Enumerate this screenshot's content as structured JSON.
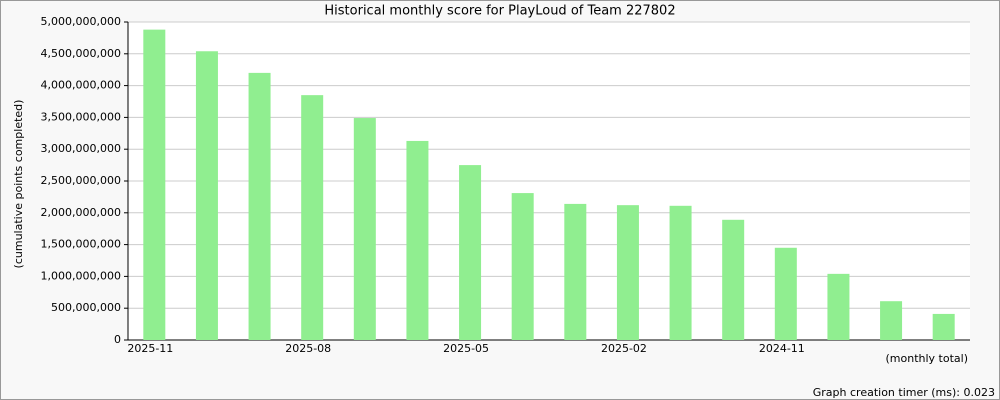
{
  "chart_data": {
    "type": "bar",
    "title": "Historical monthly score for PlayLoud of Team 227802",
    "y_label": "(cumulative points completed)",
    "x_label": "(monthly total)",
    "footer": "Graph creation timer (ms): 0.023",
    "categories": [
      "2025-11",
      null,
      null,
      "2025-08",
      null,
      null,
      "2025-05",
      null,
      null,
      "2025-02",
      null,
      null,
      "2024-11",
      null,
      null,
      null
    ],
    "values": [
      4880000000,
      4540000000,
      4200000000,
      3850000000,
      3490000000,
      3130000000,
      2750000000,
      2310000000,
      2140000000,
      2120000000,
      2110000000,
      1890000000,
      1450000000,
      1040000000,
      610000000,
      410000000
    ],
    "color": "#90ee90",
    "ylim": [
      0,
      5000000000
    ],
    "yticks": [
      0,
      {
        "value": 500000000,
        "label": "500,000,000"
      },
      {
        "value": 1000000000,
        "label": "1,000,000,000"
      },
      {
        "value": 1500000000,
        "label": "1,500,000,000"
      },
      {
        "value": 2000000000,
        "label": "2,000,000,000"
      },
      {
        "value": 2500000000,
        "label": "2,500,000,000"
      },
      {
        "value": 3000000000,
        "label": "3,000,000,000"
      },
      {
        "value": 3500000000,
        "label": "3,500,000,000"
      },
      {
        "value": 4000000000,
        "label": "4,000,000,000"
      },
      {
        "value": 4500000000,
        "label": "4,500,000,000"
      },
      {
        "value": 5000000000,
        "label": "5,000,000,000"
      }
    ],
    "grid": true
  }
}
